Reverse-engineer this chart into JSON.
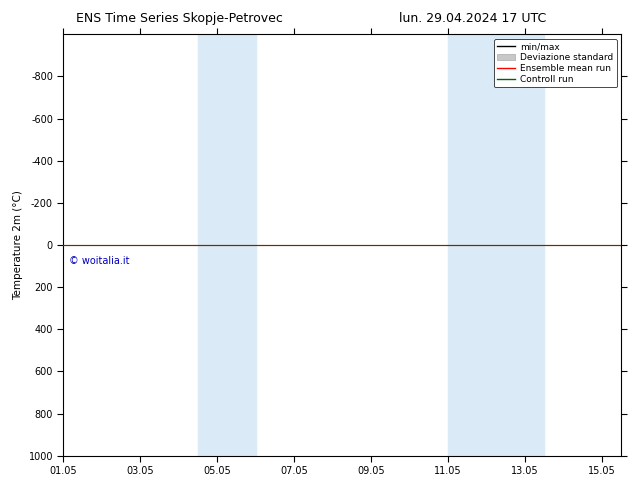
{
  "title_left": "ENS Time Series Skopje-Petrovec",
  "title_right": "lun. 29.04.2024 17 UTC",
  "ylabel": "Temperature 2m (°C)",
  "ylim_top": -1000,
  "ylim_bottom": 1000,
  "yticks": [
    -800,
    -600,
    -400,
    -200,
    0,
    200,
    400,
    600,
    800,
    1000
  ],
  "xtick_labels": [
    "01.05",
    "03.05",
    "05.05",
    "07.05",
    "09.05",
    "11.05",
    "13.05",
    "15.05"
  ],
  "xtick_positions": [
    0,
    2,
    4,
    6,
    8,
    10,
    12,
    14
  ],
  "xlim": [
    0,
    14.5
  ],
  "shade_regions": [
    {
      "start": 3.5,
      "end": 5.0
    },
    {
      "start": 10.0,
      "end": 12.5
    }
  ],
  "shade_color": "#daeaf7",
  "control_run_y": 0.0,
  "control_run_color": "#006400",
  "ensemble_mean_color": "#ff0000",
  "minmax_color": "#000000",
  "std_color": "#c8c8c8",
  "watermark_text": "© woitalia.it",
  "watermark_color": "#0000bb",
  "legend_labels": [
    "min/max",
    "Deviazione standard",
    "Ensemble mean run",
    "Controll run"
  ],
  "background_color": "#ffffff",
  "title_fontsize": 9,
  "axis_fontsize": 7.5,
  "tick_fontsize": 7,
  "legend_fontsize": 6.5
}
